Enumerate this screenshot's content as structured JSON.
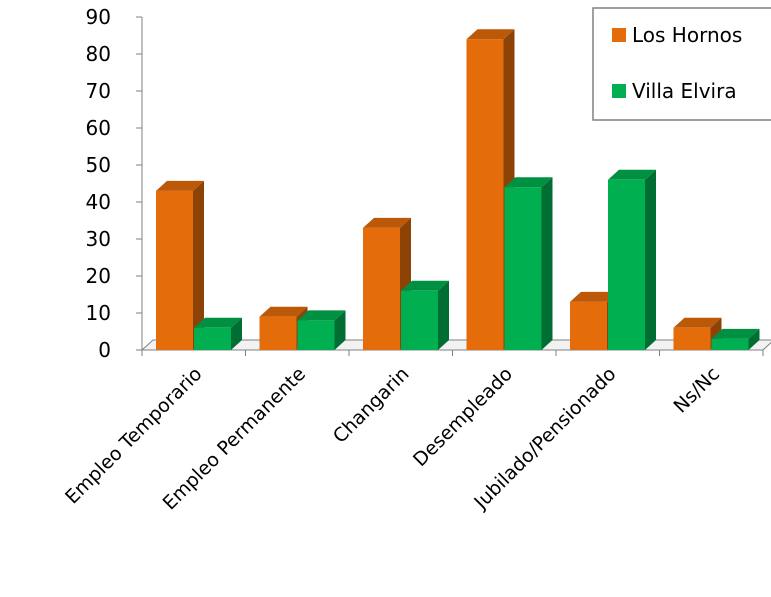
{
  "chart_data": {
    "type": "bar",
    "title": "",
    "xlabel": "",
    "ylabel": "",
    "ylim": [
      0,
      90
    ],
    "y_ticks": [
      0,
      10,
      20,
      30,
      40,
      50,
      60,
      70,
      80,
      90
    ],
    "grid": false,
    "legend_position": "top-right",
    "style": "3d-clustered",
    "categories": [
      "Empleo Temporario",
      "Empleo Permanente",
      "Changarin",
      "Desempleado",
      "Jubilado/Pensionado",
      "Ns/Nc"
    ],
    "series": [
      {
        "name": "Los Hornos",
        "color": "#E46C0A",
        "values": [
          43,
          9,
          33,
          84,
          13,
          6
        ]
      },
      {
        "name": "Villa Elvira",
        "color": "#00B050",
        "values": [
          6,
          8,
          16,
          44,
          46,
          3
        ]
      }
    ]
  }
}
